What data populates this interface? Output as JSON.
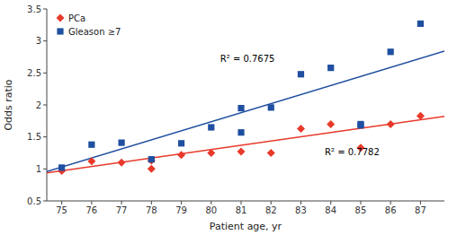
{
  "chart_data": {
    "type": "scatter",
    "xlabel": "Patient age, yr",
    "ylabel": "Odds ratio",
    "xlim": [
      74.5,
      87.8
    ],
    "ylim": [
      0.5,
      3.5
    ],
    "xticks": [
      75,
      76,
      77,
      78,
      79,
      80,
      81,
      82,
      83,
      84,
      85,
      86,
      87
    ],
    "yticks": [
      0.5,
      1.0,
      1.5,
      2.0,
      2.5,
      3.0,
      3.5
    ],
    "grid": false,
    "legend": "upper left",
    "series": [
      {
        "name": "PCa",
        "type": "scatter",
        "marker": "diamond",
        "color": "#e8392a",
        "x": [
          75,
          76,
          77,
          78,
          78,
          79,
          80,
          81,
          82,
          83,
          84,
          85,
          86,
          87
        ],
        "values": [
          0.97,
          1.12,
          1.1,
          1.0,
          1.13,
          1.22,
          1.25,
          1.27,
          1.25,
          1.63,
          1.7,
          1.33,
          1.7,
          1.83
        ]
      },
      {
        "name": "Gleason ≥7",
        "type": "scatter",
        "marker": "square",
        "color": "#1f4fa0",
        "x": [
          75,
          76,
          77,
          78,
          79,
          80,
          81,
          81,
          82,
          83,
          84,
          85,
          85,
          86,
          87
        ],
        "values": [
          1.02,
          1.38,
          1.41,
          1.15,
          1.4,
          1.65,
          1.57,
          1.95,
          1.96,
          2.48,
          2.58,
          1.68,
          1.7,
          2.83,
          3.27
        ]
      },
      {
        "type": "line",
        "color": "#e8392a",
        "x": [
          74.5,
          87.8
        ],
        "values": [
          0.938,
          1.82
        ]
      },
      {
        "type": "line",
        "color": "#1f4fa0",
        "x": [
          74.5,
          87.8
        ],
        "values": [
          0.96,
          2.84
        ]
      }
    ],
    "annotations": [
      {
        "text": "R² = 0.7675",
        "x": 80.3,
        "y": 2.72
      },
      {
        "text": "R² = 0.7782",
        "x": 83.8,
        "y": 1.26
      }
    ]
  }
}
